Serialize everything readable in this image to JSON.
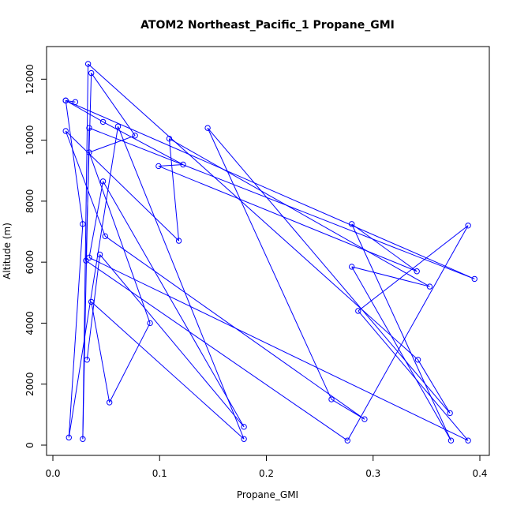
{
  "chart_data": {
    "type": "line",
    "title": "ATOM2 Northeast_Pacific_1 Propane_GMI",
    "xlabel": "Propane_GMI",
    "ylabel": "Altitude (m)",
    "xlim": [
      0,
      0.4
    ],
    "ylim": [
      0,
      12500
    ],
    "x_ticks": [
      0.0,
      0.1,
      0.2,
      0.3,
      0.4
    ],
    "x_tick_labels": [
      "0.0",
      "0.1",
      "0.2",
      "0.3",
      "0.4"
    ],
    "y_ticks": [
      0,
      2000,
      4000,
      6000,
      8000,
      10000,
      12000
    ],
    "y_tick_labels": [
      "0",
      "2000",
      "4000",
      "6000",
      "8000",
      "10000",
      "12000"
    ],
    "grid": false,
    "legend": "none",
    "series": [
      {
        "color": "#0000ff",
        "marker": "open-circle",
        "x": [
          0.021,
          0.012,
          0.047,
          0.122,
          0.099,
          0.341,
          0.28,
          0.373,
          0.28,
          0.353,
          0.109,
          0.118,
          0.012,
          0.049,
          0.292,
          0.261,
          0.145,
          0.372,
          0.342,
          0.033,
          0.028,
          0.034,
          0.395,
          0.012,
          0.028,
          0.015,
          0.061,
          0.179,
          0.036,
          0.053,
          0.091,
          0.034,
          0.077,
          0.036,
          0.031,
          0.276,
          0.389,
          0.286,
          0.389,
          0.034,
          0.047,
          0.179,
          0.044,
          0.032
        ],
        "y": [
          11250,
          11300,
          10600,
          9200,
          9150,
          5700,
          7250,
          150,
          5850,
          5200,
          10050,
          6700,
          10300,
          6850,
          850,
          1500,
          10400,
          1050,
          2800,
          12500,
          200,
          10400,
          5450,
          11300,
          7250,
          250,
          10450,
          200,
          4700,
          1400,
          4000,
          9600,
          10150,
          12200,
          6050,
          150,
          7200,
          4400,
          150,
          6150,
          8650,
          600,
          6250,
          2800
        ]
      }
    ]
  }
}
